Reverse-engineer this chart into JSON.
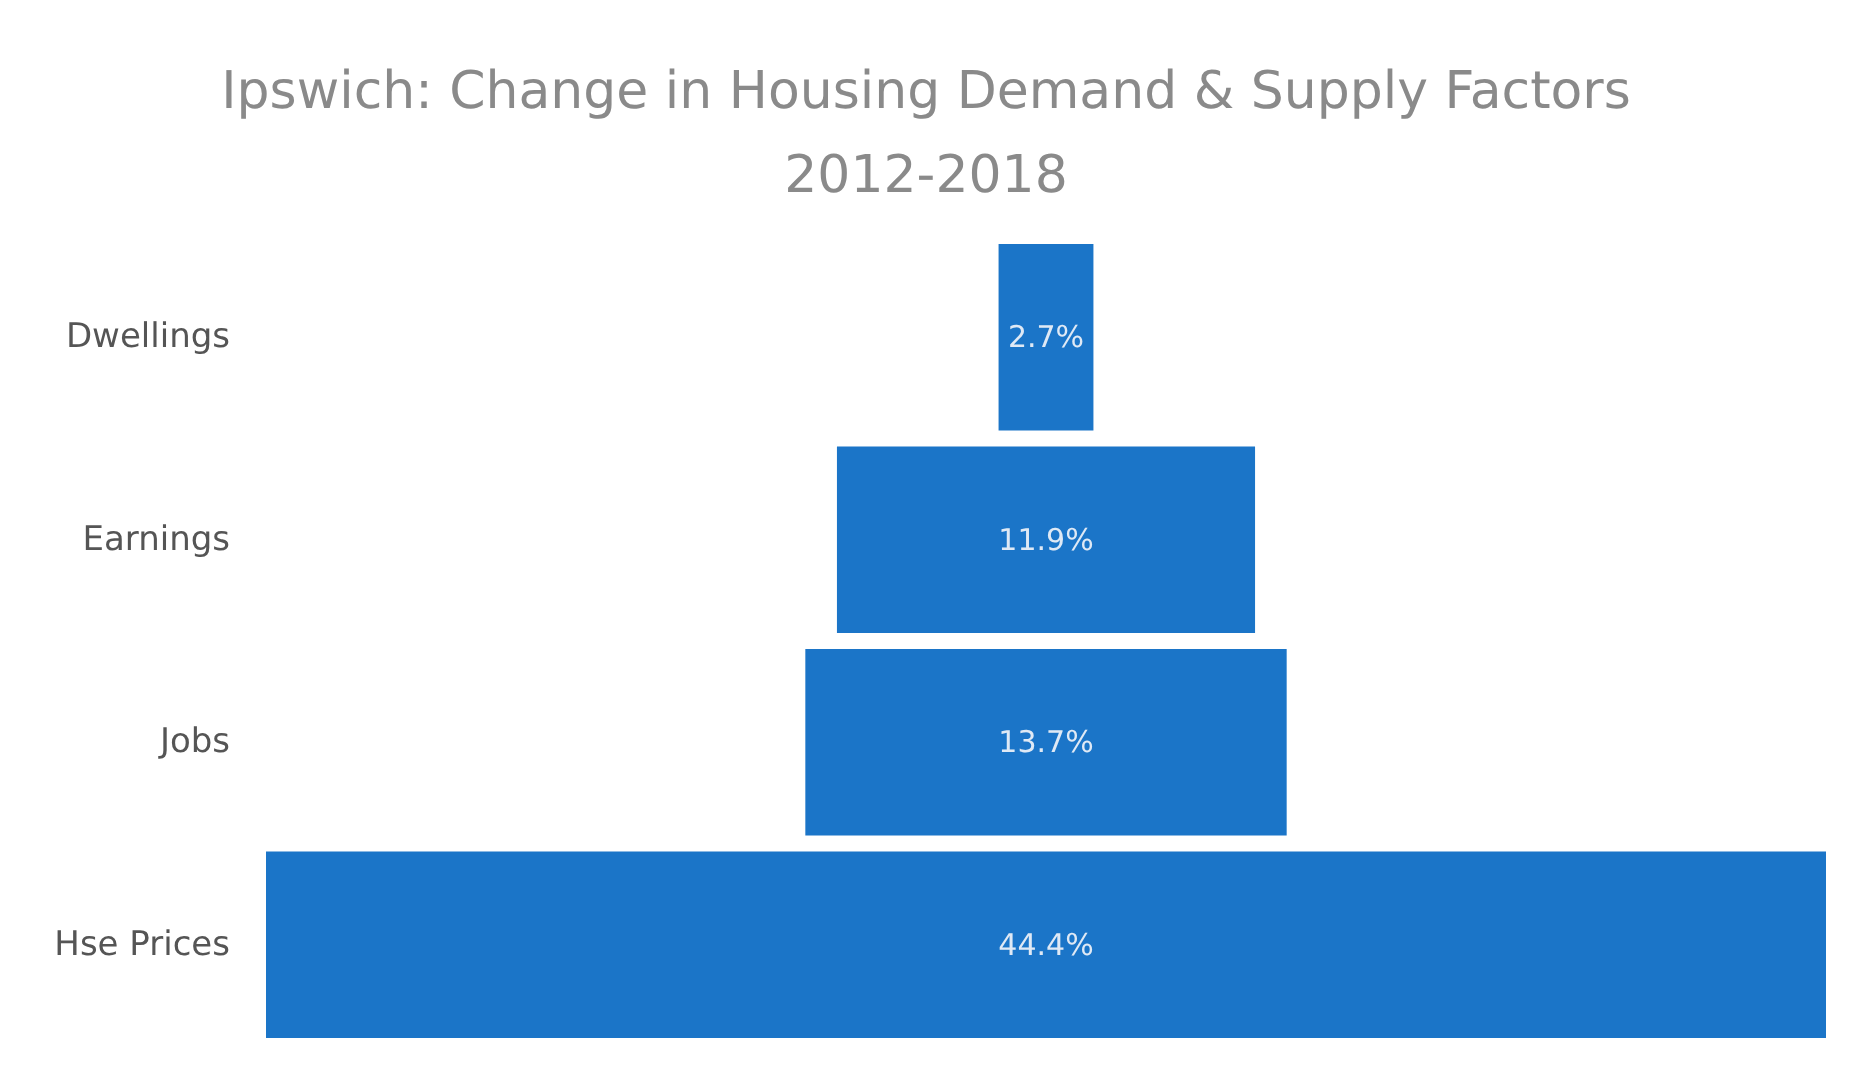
{
  "chart_data": {
    "type": "other",
    "title": "Ipswich: Change in Housing Demand & Supply Factors\n2012-2018",
    "categories": [
      "Dwellings",
      "Earnings",
      "Jobs",
      "Hse Prices"
    ],
    "values": [
      2.7,
      11.9,
      13.7,
      44.4
    ],
    "value_labels": [
      "2.7%",
      "11.9%",
      "13.7%",
      "44.4%"
    ],
    "color": "#1b75c8"
  }
}
